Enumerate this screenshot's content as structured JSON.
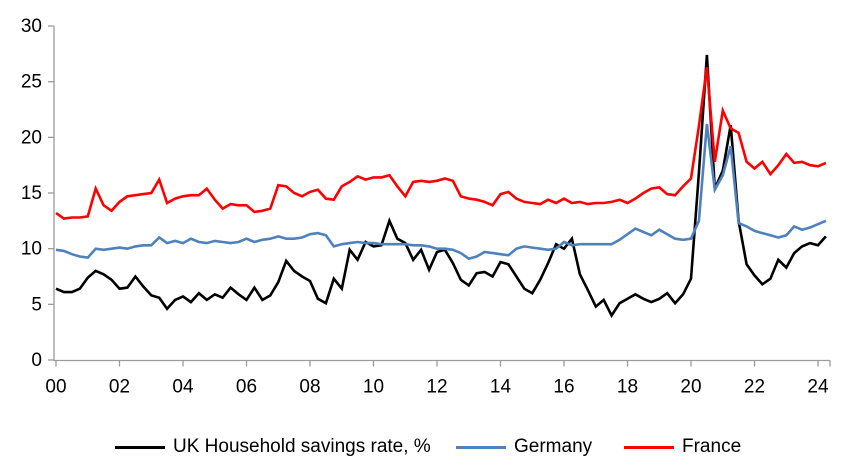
{
  "chart_data": {
    "type": "line",
    "title": "",
    "grid": false,
    "legend_position": "bottom",
    "background_color": "#FFFFFF",
    "axis_color": "#9B9B9B",
    "text_color": "#000000",
    "x_axis": {
      "unit": "year (2000s, quarterly data)",
      "range": [
        2000,
        2024.35
      ],
      "tick_years": [
        2000,
        2002,
        2004,
        2006,
        2008,
        2010,
        2012,
        2014,
        2016,
        2018,
        2020,
        2022,
        2024
      ],
      "tick_labels": [
        "00",
        "02",
        "04",
        "06",
        "08",
        "10",
        "12",
        "14",
        "16",
        "18",
        "20",
        "22",
        "24"
      ]
    },
    "y_axis": {
      "range": [
        0,
        30
      ],
      "ticks": [
        0,
        5,
        10,
        15,
        20,
        25,
        30
      ],
      "tick_labels": [
        "0",
        "5",
        "10",
        "15",
        "20",
        "25",
        "30"
      ]
    },
    "x_start": 2000,
    "x_step": 0.25,
    "series": [
      {
        "name": "UK Household savings rate, %",
        "color": "#000000",
        "values": [
          6.4,
          6.1,
          6.1,
          6.4,
          7.4,
          8.0,
          7.7,
          7.2,
          6.4,
          6.5,
          7.5,
          6.6,
          5.8,
          5.6,
          4.6,
          5.4,
          5.7,
          5.2,
          6.0,
          5.4,
          5.9,
          5.6,
          6.5,
          5.9,
          5.4,
          6.5,
          5.4,
          5.8,
          7.0,
          8.9,
          8.0,
          7.5,
          7.1,
          5.5,
          5.1,
          7.3,
          6.4,
          9.9,
          9.0,
          10.6,
          10.2,
          10.3,
          12.5,
          10.9,
          10.5,
          9.0,
          9.9,
          8.1,
          9.7,
          9.9,
          8.7,
          7.2,
          6.7,
          7.8,
          7.9,
          7.5,
          8.8,
          8.6,
          7.5,
          6.4,
          6.0,
          7.2,
          8.7,
          10.4,
          10.0,
          10.9,
          7.7,
          6.3,
          4.8,
          5.4,
          4.0,
          5.1,
          5.5,
          5.9,
          5.5,
          5.2,
          5.5,
          6.0,
          5.1,
          5.9,
          7.3,
          16.8,
          27.4,
          15.4,
          17.0,
          21.1,
          12.5,
          8.6,
          7.6,
          6.8,
          7.3,
          9.0,
          8.3,
          9.6,
          10.2,
          10.5,
          10.3,
          11.1
        ]
      },
      {
        "name": "Germany",
        "color": "#4F81BD",
        "values": [
          9.9,
          9.8,
          9.5,
          9.3,
          9.2,
          10.0,
          9.9,
          10.0,
          10.1,
          10.0,
          10.2,
          10.3,
          10.3,
          11.0,
          10.5,
          10.7,
          10.5,
          10.9,
          10.6,
          10.5,
          10.7,
          10.6,
          10.5,
          10.6,
          10.9,
          10.6,
          10.8,
          10.9,
          11.1,
          10.9,
          10.9,
          11.0,
          11.3,
          11.4,
          11.2,
          10.2,
          10.4,
          10.5,
          10.6,
          10.5,
          10.5,
          10.4,
          10.4,
          10.4,
          10.4,
          10.3,
          10.3,
          10.2,
          10.0,
          10.0,
          9.9,
          9.6,
          9.1,
          9.3,
          9.7,
          9.6,
          9.5,
          9.4,
          10.0,
          10.2,
          10.1,
          10.0,
          9.9,
          10.0,
          10.6,
          10.3,
          10.4,
          10.4,
          10.4,
          10.4,
          10.4,
          10.8,
          11.3,
          11.8,
          11.5,
          11.2,
          11.7,
          11.3,
          10.9,
          10.8,
          10.9,
          12.5,
          21.2,
          15.3,
          16.6,
          19.2,
          12.3,
          12.0,
          11.6,
          11.4,
          11.2,
          11.0,
          11.2,
          12.0,
          11.7,
          11.9,
          12.2,
          12.5
        ]
      },
      {
        "name": "France",
        "color": "#FF0000",
        "values": [
          13.2,
          12.7,
          12.8,
          12.8,
          12.9,
          15.4,
          13.9,
          13.4,
          14.2,
          14.7,
          14.8,
          14.9,
          15.0,
          16.2,
          14.1,
          14.5,
          14.7,
          14.8,
          14.8,
          15.4,
          14.4,
          13.6,
          14.0,
          13.9,
          13.9,
          13.3,
          13.4,
          13.6,
          15.7,
          15.6,
          15.0,
          14.7,
          15.1,
          15.3,
          14.5,
          14.4,
          15.6,
          16.0,
          16.5,
          16.2,
          16.4,
          16.4,
          16.6,
          15.6,
          14.7,
          16.0,
          16.1,
          16.0,
          16.1,
          16.3,
          16.1,
          14.7,
          14.5,
          14.4,
          14.2,
          13.9,
          14.9,
          15.1,
          14.5,
          14.2,
          14.1,
          14.0,
          14.4,
          14.1,
          14.5,
          14.1,
          14.2,
          14.0,
          14.1,
          14.1,
          14.2,
          14.4,
          14.1,
          14.5,
          15.0,
          15.4,
          15.5,
          14.9,
          14.8,
          15.6,
          16.3,
          21.0,
          26.3,
          17.8,
          22.4,
          20.8,
          20.4,
          17.8,
          17.2,
          17.8,
          16.7,
          17.5,
          18.5,
          17.7,
          17.8,
          17.5,
          17.4,
          17.7
        ]
      }
    ]
  }
}
